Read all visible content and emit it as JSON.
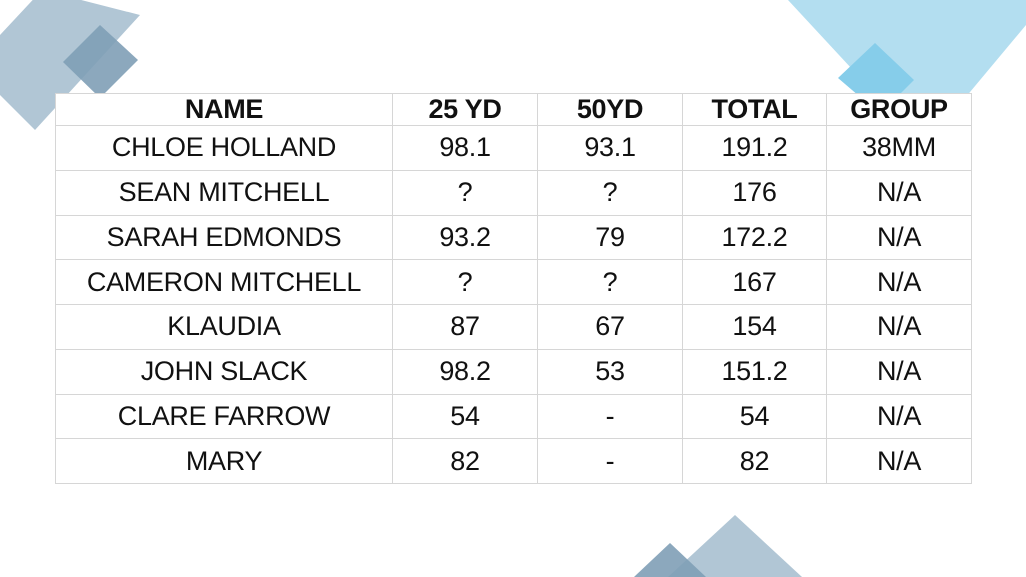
{
  "table": {
    "headers": {
      "name": "NAME",
      "yd25": "25 YD",
      "yd50": "50YD",
      "total": "TOTAL",
      "group": "GROUP"
    },
    "rows": [
      {
        "name": "CHLOE HOLLAND",
        "yd25": "98.1",
        "yd50": "93.1",
        "total": "191.2",
        "group": "38MM"
      },
      {
        "name": "SEAN MITCHELL",
        "yd25": "?",
        "yd50": "?",
        "total": "176",
        "group": "N/A"
      },
      {
        "name": "SARAH EDMONDS",
        "yd25": "93.2",
        "yd50": "79",
        "total": "172.2",
        "group": "N/A"
      },
      {
        "name": "CAMERON MITCHELL",
        "yd25": "?",
        "yd50": "?",
        "total": "167",
        "group": "N/A"
      },
      {
        "name": "KLAUDIA",
        "yd25": "87",
        "yd50": "67",
        "total": "154",
        "group": "N/A"
      },
      {
        "name": "JOHN SLACK",
        "yd25": "98.2",
        "yd50": "53",
        "total": "151.2",
        "group": "N/A"
      },
      {
        "name": "CLARE FARROW",
        "yd25": "54",
        "yd50": "-",
        "total": "54",
        "group": "N/A"
      },
      {
        "name": "MARY",
        "yd25": "82",
        "yd50": "-",
        "total": "82",
        "group": "N/A"
      }
    ]
  },
  "colors": {
    "top_left_large_square": "#a9c0d0",
    "top_left_small_square": "#7f9fb6",
    "top_right_large_shape": "#b3def0",
    "top_right_small_square": "#86cdea",
    "bottom_large_square": "#a9c0d0",
    "bottom_small_square": "#7f9fb6",
    "grid_border": "#d6d6d6",
    "text": "#111111"
  }
}
